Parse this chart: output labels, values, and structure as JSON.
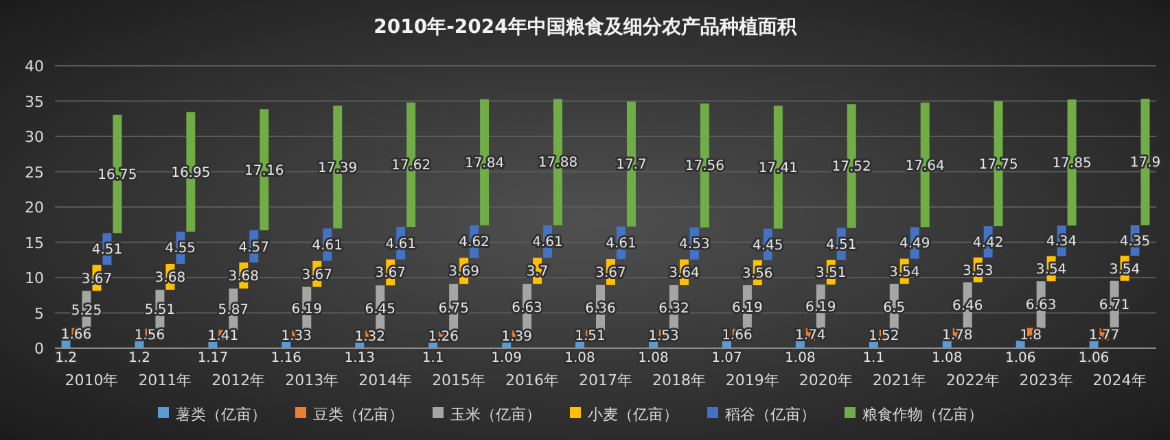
{
  "chart_data": {
    "type": "bar",
    "title": "2010年-2024年中国粮食及细分农产品种植面积",
    "categories": [
      "2010年",
      "2011年",
      "2012年",
      "2013年",
      "2014年",
      "2015年",
      "2016年",
      "2017年",
      "2018年",
      "2019年",
      "2020年",
      "2021年",
      "2022年",
      "2023年",
      "2024年"
    ],
    "stacked": true,
    "data_labels": true,
    "grid": "y",
    "legend": "bottom",
    "ylim": [
      0,
      40
    ],
    "yticks": [
      0,
      5,
      10,
      15,
      20,
      25,
      30,
      35,
      40
    ],
    "series": [
      {
        "name": "薯类（亿亩）",
        "color": "#5b9bd5",
        "values": [
          1.2,
          1.2,
          1.17,
          1.16,
          1.13,
          1.1,
          1.09,
          1.08,
          1.08,
          1.07,
          1.08,
          1.1,
          1.08,
          1.06,
          1.06
        ]
      },
      {
        "name": "豆类（亿亩）",
        "color": "#ed7d31",
        "values": [
          1.66,
          1.56,
          1.41,
          1.33,
          1.32,
          1.26,
          1.39,
          1.51,
          1.53,
          1.66,
          1.74,
          1.52,
          1.78,
          1.8,
          1.77
        ]
      },
      {
        "name": "玉米（亿亩）",
        "color": "#a5a5a5",
        "values": [
          5.25,
          5.51,
          5.87,
          6.19,
          6.45,
          6.75,
          6.63,
          6.36,
          6.32,
          6.19,
          6.19,
          6.5,
          6.46,
          6.63,
          6.71
        ]
      },
      {
        "name": "小麦（亿亩）",
        "color": "#ffc000",
        "values": [
          3.67,
          3.68,
          3.68,
          3.67,
          3.67,
          3.69,
          3.7,
          3.67,
          3.64,
          3.56,
          3.51,
          3.54,
          3.53,
          3.54,
          3.54
        ]
      },
      {
        "name": "稻谷（亿亩）",
        "color": "#4472c4",
        "values": [
          4.51,
          4.55,
          4.57,
          4.61,
          4.61,
          4.62,
          4.61,
          4.61,
          4.53,
          4.45,
          4.51,
          4.49,
          4.42,
          4.34,
          4.35
        ]
      },
      {
        "name": "粮食作物（亿亩）",
        "color": "#70ad47",
        "values": [
          16.75,
          16.95,
          17.16,
          17.39,
          17.62,
          17.84,
          17.88,
          17.7,
          17.56,
          17.41,
          17.52,
          17.64,
          17.75,
          17.85,
          17.9
        ]
      }
    ]
  }
}
